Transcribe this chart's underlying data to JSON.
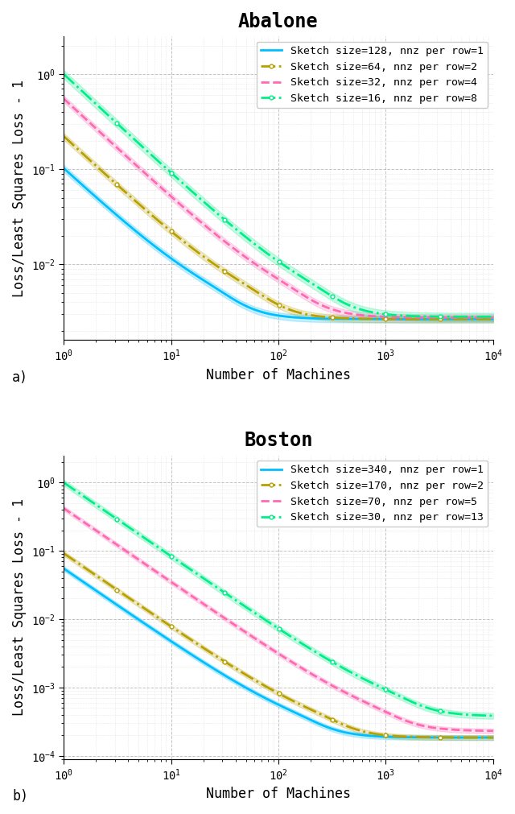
{
  "abalone": {
    "title": "Abalone",
    "series": [
      {
        "label": "Sketch size=128, nnz per row=1",
        "color": "#00BFFF",
        "linestyle": "-",
        "linewidth": 2.0,
        "C": 0.1,
        "alpha": 1.05,
        "floor": 0.00265,
        "band_factor": 0.08
      },
      {
        "label": "Sketch size=64, nnz per row=2",
        "color": "#B8A000",
        "linestyle": "-.",
        "linewidth": 2.0,
        "C": 0.22,
        "alpha": 1.05,
        "floor": 0.00265,
        "band_factor": 0.08
      },
      {
        "label": "Sketch size=32, nnz per row=4",
        "color": "#FF69B4",
        "linestyle": "--",
        "linewidth": 2.0,
        "C": 0.55,
        "alpha": 1.05,
        "floor": 0.00275,
        "band_factor": 0.08
      },
      {
        "label": "Sketch size=16, nnz per row=8",
        "color": "#00EE88",
        "linestyle": "-.",
        "linewidth": 2.0,
        "C": 1.0,
        "alpha": 1.05,
        "floor": 0.0028,
        "band_factor": 0.1
      }
    ],
    "ylabel": "Loss/Least Squares Loss - 1",
    "xlabel": "Number of Machines",
    "ylim_bottom": 0.0016,
    "ylim_top": 2.5,
    "panel_label": "a)"
  },
  "boston": {
    "title": "Boston",
    "series": [
      {
        "label": "Sketch size=340, nnz per row=1",
        "color": "#00BFFF",
        "linestyle": "-",
        "linewidth": 2.0,
        "C": 0.055,
        "alpha": 1.08,
        "floor": 0.000185,
        "band_factor": 0.08
      },
      {
        "label": "Sketch size=170, nnz per row=2",
        "color": "#B8A000",
        "linestyle": "-.",
        "linewidth": 2.0,
        "C": 0.092,
        "alpha": 1.08,
        "floor": 0.000185,
        "band_factor": 0.08
      },
      {
        "label": "Sketch size=70, nnz per row=5",
        "color": "#FF69B4",
        "linestyle": "--",
        "linewidth": 2.0,
        "C": 0.42,
        "alpha": 1.08,
        "floor": 0.00023,
        "band_factor": 0.08
      },
      {
        "label": "Sketch size=30, nnz per row=13",
        "color": "#00EE88",
        "linestyle": "-.",
        "linewidth": 2.0,
        "C": 1.0,
        "alpha": 1.08,
        "floor": 0.00038,
        "band_factor": 0.1
      }
    ],
    "ylabel": "Loss/Least Squares Loss - 1",
    "xlabel": "Number of Machines",
    "ylim_bottom": 9e-05,
    "ylim_top": 2.5,
    "panel_label": "b)"
  },
  "x_range": [
    1,
    10000
  ],
  "background_color": "#ffffff",
  "grid_color": "#aaaaaa",
  "font_family": "DejaVu Sans Mono",
  "title_fontsize": 17,
  "label_fontsize": 12,
  "legend_fontsize": 9.5,
  "tick_fontsize": 10
}
